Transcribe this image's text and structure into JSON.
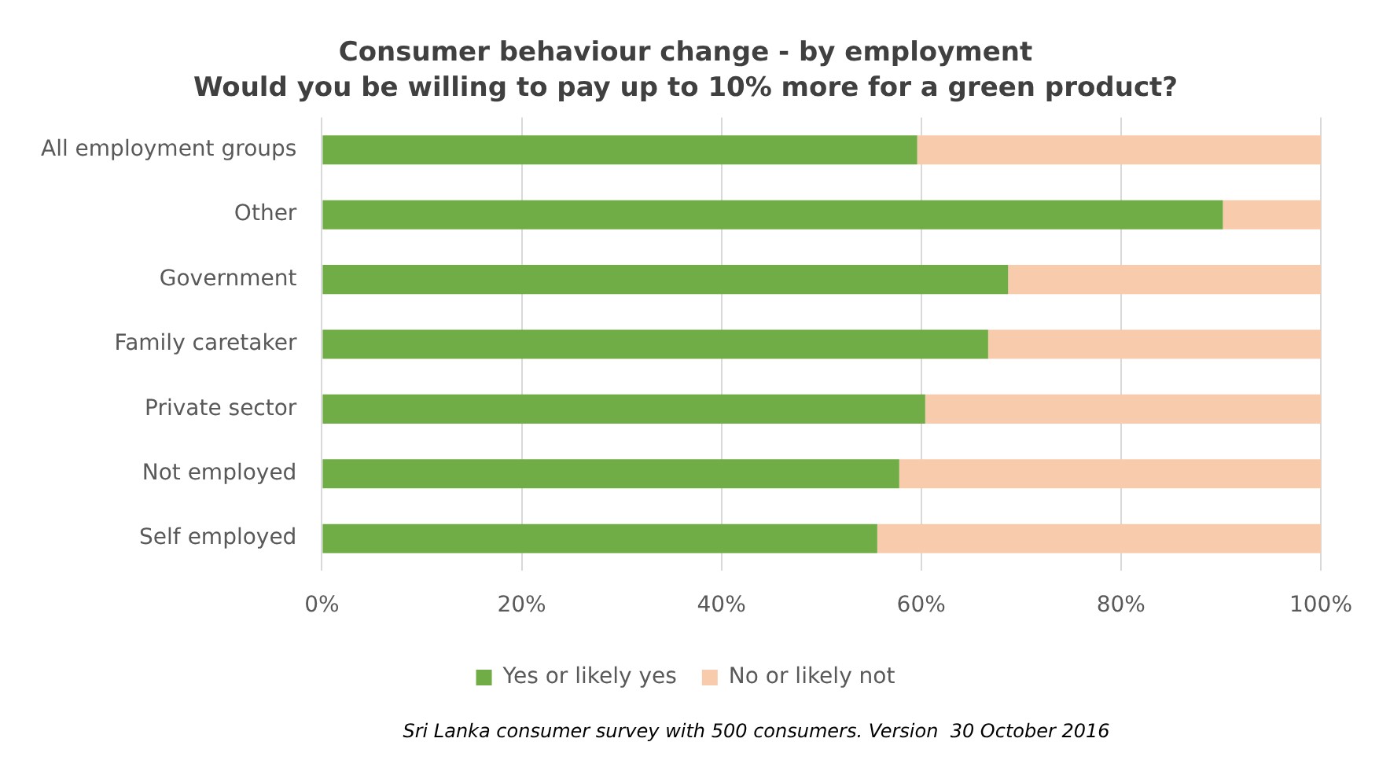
{
  "chart_data": {
    "type": "bar",
    "orientation": "horizontal",
    "stacked": true,
    "title": "Consumer behaviour change - by employment",
    "subtitle": "Would you be willing to pay up to 10% more for a green product?",
    "categories": [
      "All employment groups",
      "Other",
      "Government",
      "Family caretaker",
      "Private sector",
      "Not employed",
      "Self employed"
    ],
    "series": [
      {
        "name": "Yes or likely yes",
        "color": "#70ad47",
        "values": [
          59.6,
          90.2,
          68.7,
          66.7,
          60.4,
          57.8,
          55.6
        ]
      },
      {
        "name": "No or likely not",
        "color": "#f8cbad",
        "values": [
          40.4,
          9.8,
          31.3,
          33.3,
          39.6,
          42.2,
          44.4
        ]
      }
    ],
    "xlim": [
      0,
      100
    ],
    "xticks": [
      {
        "value": 0,
        "label": "0%"
      },
      {
        "value": 20,
        "label": "20%"
      },
      {
        "value": 40,
        "label": "40%"
      },
      {
        "value": 60,
        "label": "60%"
      },
      {
        "value": 80,
        "label": "80%"
      },
      {
        "value": 100,
        "label": "100%"
      }
    ],
    "grid": "x",
    "legend": "bottom",
    "annotations": [
      "Sri Lanka consumer survey with 500 consumers. Version  30 October 2016"
    ]
  }
}
